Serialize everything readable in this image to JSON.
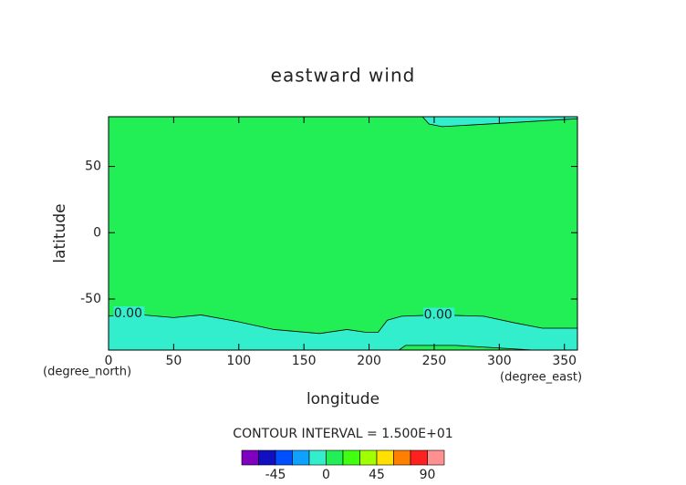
{
  "chart_data": {
    "type": "contour",
    "title": "eastward wind",
    "x_label": "longitude",
    "y_label": "latitude",
    "x_unit": "(degree_east)",
    "y_unit": "(degree_north)",
    "xlim": [
      0,
      360
    ],
    "ylim": [
      -88.5,
      87.5
    ],
    "xticks": [
      0,
      50,
      100,
      150,
      200,
      250,
      300,
      350
    ],
    "yticks": [
      -50,
      0,
      50
    ],
    "background_color": "#22ee55",
    "contours": [
      {
        "level": 0,
        "label": "0.00",
        "fill": "#33eecc",
        "closes": "bottom",
        "x": [
          0,
          15,
          50,
          71,
          99,
          127,
          162,
          183,
          197,
          207,
          214,
          225,
          253,
          288,
          312,
          333,
          360
        ],
        "y": [
          -63,
          -61,
          -64,
          -62,
          -67,
          -73,
          -76,
          -73,
          -75,
          -75,
          -66,
          -63,
          -62,
          -63,
          -68,
          -72,
          -72
        ]
      },
      {
        "level": 0,
        "fill": "#33eecc",
        "closes": "top",
        "x": [
          241,
          246,
          256,
          309,
          360
        ],
        "y": [
          87.5,
          82,
          80,
          83,
          86
        ]
      },
      {
        "level": 0,
        "fill": "#22ee55",
        "closes": "bottom",
        "x": [
          223,
          228,
          267,
          326
        ],
        "y": [
          -88.5,
          -85,
          -85,
          -88.5
        ]
      }
    ],
    "interval_text": "CONTOUR INTERVAL = 1.500E+01",
    "colorbar": {
      "levels": [
        -75,
        -60,
        -45,
        -30,
        -15,
        0,
        15,
        30,
        45,
        60,
        75,
        90,
        105
      ],
      "colors": [
        "#8000c0",
        "#1010c0",
        "#0050ff",
        "#10a0ff",
        "#33eecc",
        "#22ee55",
        "#40ff10",
        "#a0ff00",
        "#ffe000",
        "#ff8000",
        "#ff2020",
        "#ff9090"
      ],
      "ticks": [
        -45,
        0,
        45,
        90
      ]
    }
  }
}
